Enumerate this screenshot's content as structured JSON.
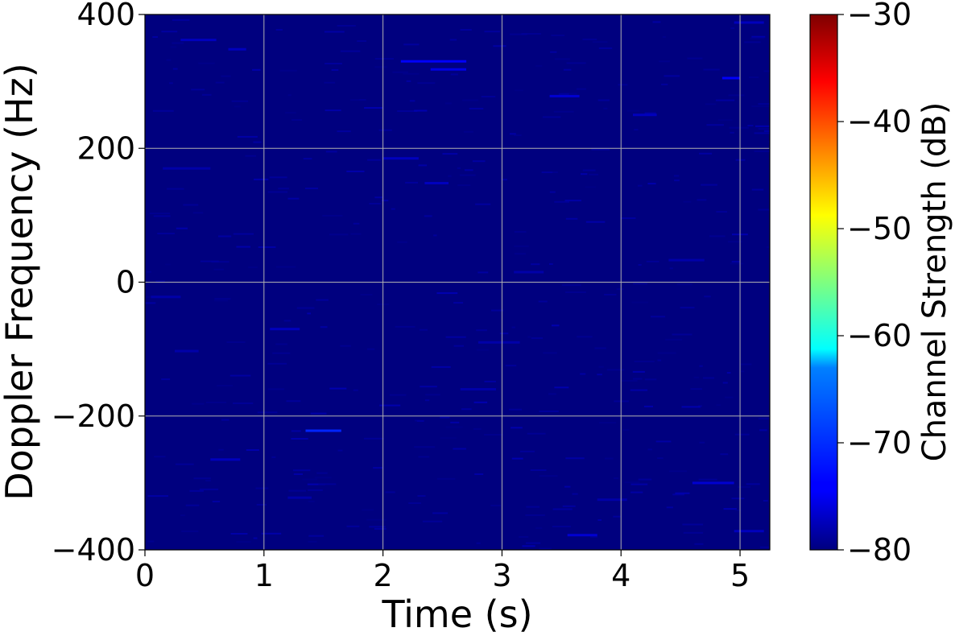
{
  "chart_data": {
    "type": "heatmap",
    "title": "",
    "xlabel": "Time (s)",
    "ylabel": "Doppler Frequency (Hz)",
    "xlim": [
      0,
      5.25
    ],
    "ylim": [
      -400,
      400
    ],
    "x_ticks": [
      0,
      1,
      2,
      3,
      4,
      5
    ],
    "x_tick_labels": [
      "0",
      "1",
      "2",
      "3",
      "4",
      "5"
    ],
    "y_ticks": [
      -400,
      -200,
      0,
      200,
      400
    ],
    "y_tick_labels": [
      "−400",
      "−200",
      "0",
      "200",
      "400"
    ],
    "grid": true,
    "colormap": "jet",
    "background_level_db": -80,
    "colorbar": {
      "label": "Channel Strength (dB)",
      "range": [
        -80,
        -30
      ],
      "ticks": [
        -80,
        -70,
        -60,
        -50,
        -40,
        -30
      ],
      "tick_labels": [
        "−80",
        "−70",
        "−60",
        "−50",
        "−40",
        "−30"
      ]
    },
    "streaks": [
      {
        "t0": 1.35,
        "t1": 1.65,
        "f": -222,
        "db": -72
      },
      {
        "t0": 2.15,
        "t1": 2.7,
        "f": 330,
        "db": -74
      },
      {
        "t0": 2.4,
        "t1": 2.7,
        "f": 318,
        "db": -75
      },
      {
        "t0": 3.4,
        "t1": 3.65,
        "f": 278,
        "db": -76
      },
      {
        "t0": 4.85,
        "t1": 5.0,
        "f": 305,
        "db": -74
      },
      {
        "t0": 4.6,
        "t1": 4.95,
        "f": -300,
        "db": -76
      },
      {
        "t0": 0.55,
        "t1": 0.8,
        "f": -265,
        "db": -77
      },
      {
        "t0": 1.05,
        "t1": 1.3,
        "f": -70,
        "db": -77
      },
      {
        "t0": 2.0,
        "t1": 2.3,
        "f": 185,
        "db": -77
      },
      {
        "t0": 2.35,
        "t1": 2.55,
        "f": 148,
        "db": -77
      },
      {
        "t0": 3.55,
        "t1": 3.8,
        "f": -378,
        "db": -76
      },
      {
        "t0": 4.1,
        "t1": 4.3,
        "f": 250,
        "db": -77
      },
      {
        "t0": 0.15,
        "t1": 0.55,
        "f": 170,
        "db": -78
      },
      {
        "t0": 0.3,
        "t1": 0.6,
        "f": 362,
        "db": -77
      },
      {
        "t0": 0.7,
        "t1": 0.85,
        "f": 348,
        "db": -77
      },
      {
        "t0": 2.8,
        "t1": 3.15,
        "f": -90,
        "db": -78
      },
      {
        "t0": 3.8,
        "t1": 4.05,
        "f": -325,
        "db": -78
      },
      {
        "t0": 4.95,
        "t1": 5.2,
        "f": -372,
        "db": -77
      },
      {
        "t0": 1.2,
        "t1": 1.4,
        "f": -322,
        "db": -78
      },
      {
        "t0": 0.05,
        "t1": 0.3,
        "f": -22,
        "db": -78
      },
      {
        "t0": 3.1,
        "t1": 3.35,
        "f": 15,
        "db": -78
      },
      {
        "t0": 4.4,
        "t1": 4.7,
        "f": 33,
        "db": -78
      },
      {
        "t0": 2.65,
        "t1": 2.95,
        "f": -160,
        "db": -78
      },
      {
        "t0": 0.25,
        "t1": 0.45,
        "f": -103,
        "db": -78
      },
      {
        "t0": 4.95,
        "t1": 5.2,
        "f": 388,
        "db": -77
      }
    ]
  }
}
